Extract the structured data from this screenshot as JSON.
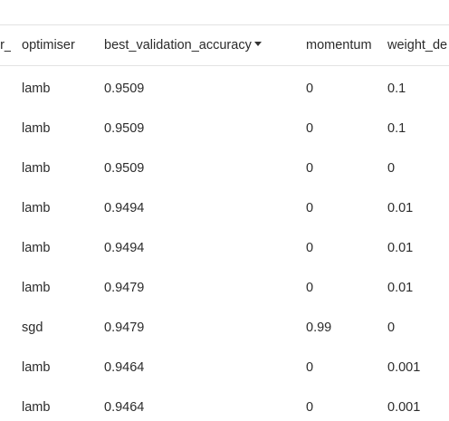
{
  "table": {
    "columns": [
      {
        "key": "prev_col",
        "label": "er_"
      },
      {
        "key": "optimiser",
        "label": "optimiser"
      },
      {
        "key": "best_validation_accuracy",
        "label": "best_validation_accuracy",
        "sorted": "desc"
      },
      {
        "key": "momentum",
        "label": "momentum"
      },
      {
        "key": "weight_decay",
        "label": "weight_de"
      }
    ],
    "rows": [
      {
        "optimiser": "lamb",
        "best_validation_accuracy": "0.9509",
        "momentum": "0",
        "weight_decay": "0.1"
      },
      {
        "optimiser": "lamb",
        "best_validation_accuracy": "0.9509",
        "momentum": "0",
        "weight_decay": "0.1"
      },
      {
        "optimiser": "lamb",
        "best_validation_accuracy": "0.9509",
        "momentum": "0",
        "weight_decay": "0"
      },
      {
        "optimiser": "lamb",
        "best_validation_accuracy": "0.9494",
        "momentum": "0",
        "weight_decay": "0.01"
      },
      {
        "optimiser": "lamb",
        "best_validation_accuracy": "0.9494",
        "momentum": "0",
        "weight_decay": "0.01"
      },
      {
        "optimiser": "lamb",
        "best_validation_accuracy": "0.9479",
        "momentum": "0",
        "weight_decay": "0.01"
      },
      {
        "optimiser": "sgd",
        "best_validation_accuracy": "0.9479",
        "momentum": "0.99",
        "weight_decay": "0"
      },
      {
        "optimiser": "lamb",
        "best_validation_accuracy": "0.9464",
        "momentum": "0",
        "weight_decay": "0.001"
      },
      {
        "optimiser": "lamb",
        "best_validation_accuracy": "0.9464",
        "momentum": "0",
        "weight_decay": "0.001"
      }
    ]
  },
  "icons": {
    "sort": "sort-descending-caret-icon"
  },
  "colors": {
    "text": "#2b2b2b",
    "border": "#e3e3e3",
    "background": "#ffffff"
  }
}
